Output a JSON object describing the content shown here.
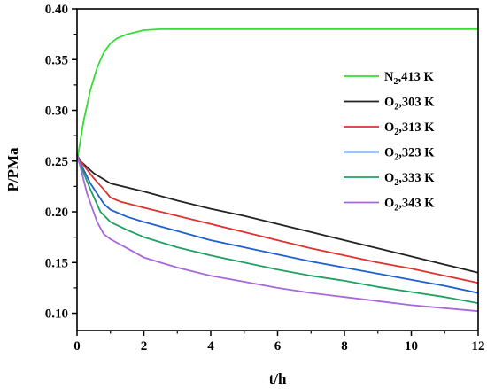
{
  "chart_data": {
    "type": "line",
    "title": "",
    "xlabel": "t/h",
    "ylabel": "P/PMa",
    "xlim": [
      0,
      12
    ],
    "ylim": [
      0.083,
      0.4
    ],
    "xticks": [
      0,
      2,
      4,
      6,
      8,
      10,
      12
    ],
    "yticks": [
      0.1,
      0.15,
      0.2,
      0.25,
      0.3,
      0.35,
      0.4
    ],
    "ytick_labels": [
      "0.10",
      "0.15",
      "0.20",
      "0.25",
      "0.30",
      "0.35",
      "0.40"
    ],
    "grid": false,
    "legend_position": "right",
    "series": [
      {
        "name": "N2,413 K",
        "label_main": "N",
        "label_sub": "2",
        "label_rest": ",413 K",
        "color": "#33dd33",
        "x": [
          0,
          0.2,
          0.4,
          0.6,
          0.8,
          1.0,
          1.2,
          1.5,
          2.0,
          2.5,
          3,
          4,
          6,
          8,
          10,
          12
        ],
        "y": [
          0.25,
          0.29,
          0.32,
          0.342,
          0.357,
          0.366,
          0.371,
          0.375,
          0.379,
          0.38,
          0.38,
          0.38,
          0.38,
          0.38,
          0.38,
          0.38
        ]
      },
      {
        "name": "O2,303 K",
        "label_main": "O",
        "label_sub": "2",
        "label_rest": ",303 K",
        "color": "#222222",
        "x": [
          0,
          0.1,
          0.5,
          1,
          2,
          3,
          4,
          5,
          6,
          7,
          8,
          9,
          10,
          11,
          12
        ],
        "y": [
          0.256,
          0.25,
          0.238,
          0.228,
          0.22,
          0.211,
          0.203,
          0.196,
          0.188,
          0.18,
          0.172,
          0.164,
          0.156,
          0.148,
          0.14
        ]
      },
      {
        "name": "O2,313 K",
        "label_main": "O",
        "label_sub": "2",
        "label_rest": ",313 K",
        "color": "#e03030",
        "x": [
          0,
          0.1,
          0.5,
          0.8,
          1,
          1.3,
          2,
          3,
          4,
          5,
          6,
          7,
          8,
          9,
          10,
          11,
          12
        ],
        "y": [
          0.256,
          0.25,
          0.233,
          0.222,
          0.214,
          0.21,
          0.204,
          0.196,
          0.188,
          0.18,
          0.172,
          0.164,
          0.157,
          0.15,
          0.144,
          0.137,
          0.13
        ]
      },
      {
        "name": "O2,323 K",
        "label_main": "O",
        "label_sub": "2",
        "label_rest": ",323 K",
        "color": "#1f5fd0",
        "x": [
          0,
          0.1,
          0.4,
          0.8,
          1,
          1.5,
          2,
          3,
          4,
          5,
          6,
          7,
          8,
          9,
          10,
          11,
          12
        ],
        "y": [
          0.256,
          0.248,
          0.228,
          0.208,
          0.202,
          0.195,
          0.19,
          0.181,
          0.172,
          0.165,
          0.158,
          0.151,
          0.145,
          0.139,
          0.133,
          0.127,
          0.12
        ]
      },
      {
        "name": "O2,333 K",
        "label_main": "O",
        "label_sub": "2",
        "label_rest": ",333 K",
        "color": "#1fa060",
        "x": [
          0,
          0.1,
          0.4,
          0.7,
          1,
          1.5,
          2,
          3,
          4,
          5,
          6,
          7,
          8,
          9,
          10,
          11,
          12
        ],
        "y": [
          0.256,
          0.246,
          0.222,
          0.2,
          0.19,
          0.182,
          0.175,
          0.165,
          0.157,
          0.15,
          0.143,
          0.137,
          0.132,
          0.126,
          0.121,
          0.116,
          0.11
        ]
      },
      {
        "name": "O2,343 K",
        "label_main": "O",
        "label_sub": "2",
        "label_rest": ",343 K",
        "color": "#a868d8",
        "x": [
          0,
          0.1,
          0.3,
          0.6,
          0.8,
          1,
          1.5,
          2,
          3,
          4,
          5,
          6,
          7,
          8,
          9,
          10,
          11,
          12
        ],
        "y": [
          0.256,
          0.244,
          0.218,
          0.19,
          0.178,
          0.173,
          0.164,
          0.155,
          0.145,
          0.137,
          0.131,
          0.125,
          0.12,
          0.116,
          0.112,
          0.108,
          0.105,
          0.102
        ]
      }
    ]
  }
}
